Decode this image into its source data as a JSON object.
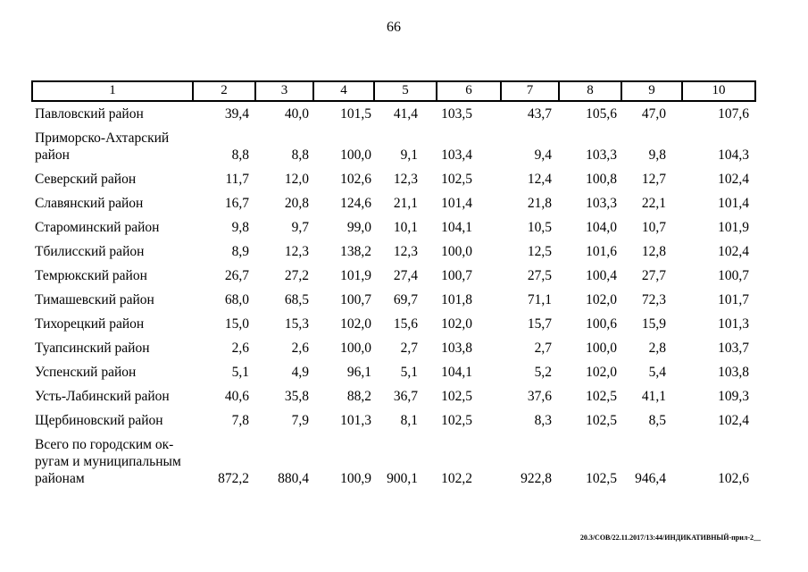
{
  "page": {
    "number": "66"
  },
  "footer": {
    "text": "20.3/СОВ/22.11.2017/13:44/ИНДИКАТИВНЫЙ-прил-2__"
  },
  "table": {
    "header": [
      "1",
      "2",
      "3",
      "4",
      "5",
      "6",
      "7",
      "8",
      "9",
      "10"
    ],
    "rows": [
      {
        "name": "Павловский район",
        "values": [
          "39,4",
          "40,0",
          "101,5",
          "41,4",
          "103,5",
          "43,7",
          "105,6",
          "47,0",
          "107,6"
        ]
      },
      {
        "name": "Приморско-Ахтарский\nрайон",
        "values": [
          "8,8",
          "8,8",
          "100,0",
          "9,1",
          "103,4",
          "9,4",
          "103,3",
          "9,8",
          "104,3"
        ]
      },
      {
        "name": "Северский район",
        "values": [
          "11,7",
          "12,0",
          "102,6",
          "12,3",
          "102,5",
          "12,4",
          "100,8",
          "12,7",
          "102,4"
        ]
      },
      {
        "name": "Славянский район",
        "values": [
          "16,7",
          "20,8",
          "124,6",
          "21,1",
          "101,4",
          "21,8",
          "103,3",
          "22,1",
          "101,4"
        ]
      },
      {
        "name": "Староминский район",
        "values": [
          "9,8",
          "9,7",
          "99,0",
          "10,1",
          "104,1",
          "10,5",
          "104,0",
          "10,7",
          "101,9"
        ]
      },
      {
        "name": "Тбилисский район",
        "values": [
          "8,9",
          "12,3",
          "138,2",
          "12,3",
          "100,0",
          "12,5",
          "101,6",
          "12,8",
          "102,4"
        ]
      },
      {
        "name": "Темрюкский район",
        "values": [
          "26,7",
          "27,2",
          "101,9",
          "27,4",
          "100,7",
          "27,5",
          "100,4",
          "27,7",
          "100,7"
        ]
      },
      {
        "name": "Тимашевский район",
        "values": [
          "68,0",
          "68,5",
          "100,7",
          "69,7",
          "101,8",
          "71,1",
          "102,0",
          "72,3",
          "101,7"
        ]
      },
      {
        "name": "Тихорецкий район",
        "values": [
          "15,0",
          "15,3",
          "102,0",
          "15,6",
          "102,0",
          "15,7",
          "100,6",
          "15,9",
          "101,3"
        ]
      },
      {
        "name": "Туапсинский район",
        "values": [
          "2,6",
          "2,6",
          "100,0",
          "2,7",
          "103,8",
          "2,7",
          "100,0",
          "2,8",
          "103,7"
        ]
      },
      {
        "name": "Успенский район",
        "values": [
          "5,1",
          "4,9",
          "96,1",
          "5,1",
          "104,1",
          "5,2",
          "102,0",
          "5,4",
          "103,8"
        ]
      },
      {
        "name": "Усть-Лабинский район",
        "values": [
          "40,6",
          "35,8",
          "88,2",
          "36,7",
          "102,5",
          "37,6",
          "102,5",
          "41,1",
          "109,3"
        ]
      },
      {
        "name": "Щербиновский район",
        "values": [
          "7,8",
          "7,9",
          "101,3",
          "8,1",
          "102,5",
          "8,3",
          "102,5",
          "8,5",
          "102,4"
        ]
      },
      {
        "name": "Всего по городским ок-\nругам и муниципальным\nрайонам",
        "values": [
          "872,2",
          "880,4",
          "100,9",
          "900,1",
          "102,2",
          "922,8",
          "102,5",
          "946,4",
          "102,6"
        ]
      }
    ]
  }
}
